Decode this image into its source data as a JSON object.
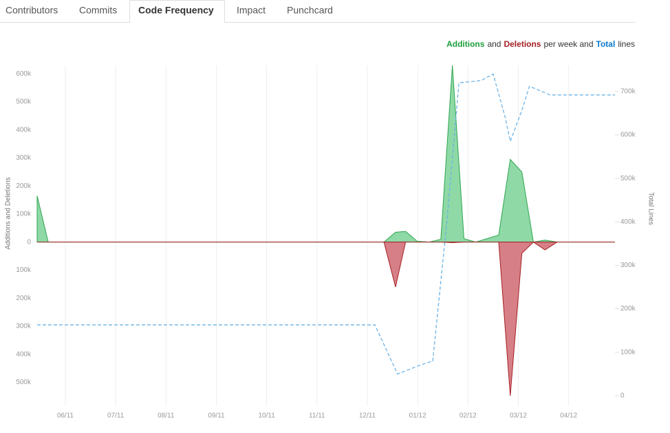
{
  "tabs": {
    "items": [
      "Contributors",
      "Commits",
      "Code Frequency",
      "Impact",
      "Punchcard"
    ],
    "active": 2
  },
  "chart_data": {
    "type": "area",
    "legend_text": [
      "and",
      "per week and",
      "lines"
    ],
    "ylabel": "Additions and Deletions",
    "y2label": "Total Lines",
    "xlim": [
      -0.56,
      10.92
    ],
    "xticks": [
      {
        "value": 0,
        "label": "06/11"
      },
      {
        "value": 1,
        "label": "07/11"
      },
      {
        "value": 2,
        "label": "08/11"
      },
      {
        "value": 3,
        "label": "09/11"
      },
      {
        "value": 4,
        "label": "10/11"
      },
      {
        "value": 5,
        "label": "11/11"
      },
      {
        "value": 6,
        "label": "12/11"
      },
      {
        "value": 7,
        "label": "01/12"
      },
      {
        "value": 8,
        "label": "02/12"
      },
      {
        "value": 9,
        "label": "03/12"
      },
      {
        "value": 10,
        "label": "04/12"
      }
    ],
    "ylim": [
      -585000,
      630000
    ],
    "yticks": [
      {
        "value": 600000,
        "label": "600k"
      },
      {
        "value": 500000,
        "label": "500k"
      },
      {
        "value": 400000,
        "label": "400k"
      },
      {
        "value": 300000,
        "label": "300k"
      },
      {
        "value": 200000,
        "label": "200k"
      },
      {
        "value": 100000,
        "label": "100k"
      },
      0,
      {
        "value": -100000,
        "label": "100k"
      },
      {
        "value": -200000,
        "label": "200k"
      },
      {
        "value": -300000,
        "label": "300k"
      },
      {
        "value": -400000,
        "label": "400k"
      },
      {
        "value": -500000,
        "label": "500k"
      }
    ],
    "y2lim": [
      -24000,
      760000
    ],
    "y2ticks": [
      0,
      {
        "value": 100000,
        "label": "100k"
      },
      {
        "value": 200000,
        "label": "200k"
      },
      {
        "value": 300000,
        "label": "300k"
      },
      {
        "value": 400000,
        "label": "400k"
      },
      {
        "value": 500000,
        "label": "500k"
      },
      {
        "value": 600000,
        "label": "600k"
      },
      {
        "value": 700000,
        "label": "700k"
      }
    ],
    "grid": true,
    "series": [
      {
        "name": "Additions",
        "color": "#2ea44f",
        "fill": "#8ed9a6",
        "label_color": "#1a9e3a",
        "x": [
          -0.56,
          -0.34,
          6.1,
          6.33,
          6.56,
          6.76,
          6.99,
          7.23,
          7.46,
          7.69,
          7.92,
          8.15,
          8.61,
          8.84,
          9.07,
          9.3,
          9.53,
          9.77,
          10.92
        ],
        "values": [
          165000,
          0,
          0,
          0,
          35000,
          38000,
          3000,
          0,
          10000,
          630000,
          12000,
          0,
          25000,
          295000,
          250000,
          0,
          7000,
          0,
          0
        ]
      },
      {
        "name": "Deletions",
        "color": "#a41e22",
        "fill": "#d67f86",
        "label_color": "#a41e22",
        "x": [
          -0.56,
          -0.34,
          6.1,
          6.33,
          6.56,
          6.76,
          6.99,
          7.23,
          7.46,
          7.69,
          7.92,
          8.15,
          8.61,
          8.84,
          9.07,
          9.3,
          9.53,
          9.77,
          10.92
        ],
        "values": [
          0,
          0,
          0,
          0,
          -160000,
          0,
          0,
          0,
          0,
          -2000,
          0,
          0,
          0,
          -548000,
          -40000,
          0,
          -28000,
          0,
          0
        ]
      },
      {
        "name": "Total",
        "color": "#6db3e6",
        "label_color": "#0a79d0",
        "axis": "y2",
        "x": [
          -0.56,
          6.15,
          6.6,
          7.04,
          7.3,
          7.58,
          7.82,
          8.26,
          8.5,
          8.74,
          8.84,
          9.08,
          9.22,
          9.63,
          10.92
        ],
        "values": [
          163000,
          163000,
          50000,
          70000,
          80000,
          400000,
          720000,
          725000,
          740000,
          640000,
          585000,
          660000,
          712000,
          692000,
          692000
        ]
      }
    ]
  }
}
